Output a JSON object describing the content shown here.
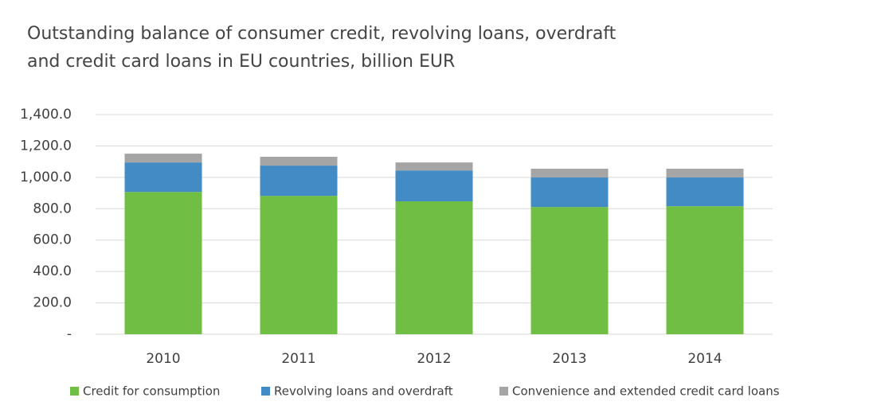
{
  "chart_data": {
    "type": "stacked_bar",
    "title": [
      "Outstanding balance of consumer credit, revolving loans, overdraft",
      "and credit card loans in EU countries, billion EUR"
    ],
    "categories": [
      "2010",
      "2011",
      "2012",
      "2013",
      "2014"
    ],
    "series": [
      {
        "name": "Credit for consumption",
        "color": "#70bf44",
        "values": [
          907,
          882,
          847,
          811,
          816
        ]
      },
      {
        "name": "Revolving loans and overdraft",
        "color": "#428bc4",
        "values": [
          188,
          193,
          197,
          188,
          183
        ]
      },
      {
        "name": "Convenience and extended credit card loans",
        "color": "#a5a5a5",
        "values": [
          56,
          56,
          51,
          56,
          56
        ]
      }
    ],
    "ylim": [
      0,
      1400
    ],
    "yticks": [
      {
        "value": 0,
        "label": "-"
      },
      {
        "value": 200,
        "label": "200.0"
      },
      {
        "value": 400,
        "label": "400.0"
      },
      {
        "value": 600,
        "label": "600.0"
      },
      {
        "value": 800,
        "label": "800.0"
      },
      {
        "value": 1000,
        "label": "1,000.0"
      },
      {
        "value": 1200,
        "label": "1,200.0"
      },
      {
        "value": 1400,
        "label": "1,400.0"
      }
    ],
    "grid": true
  }
}
